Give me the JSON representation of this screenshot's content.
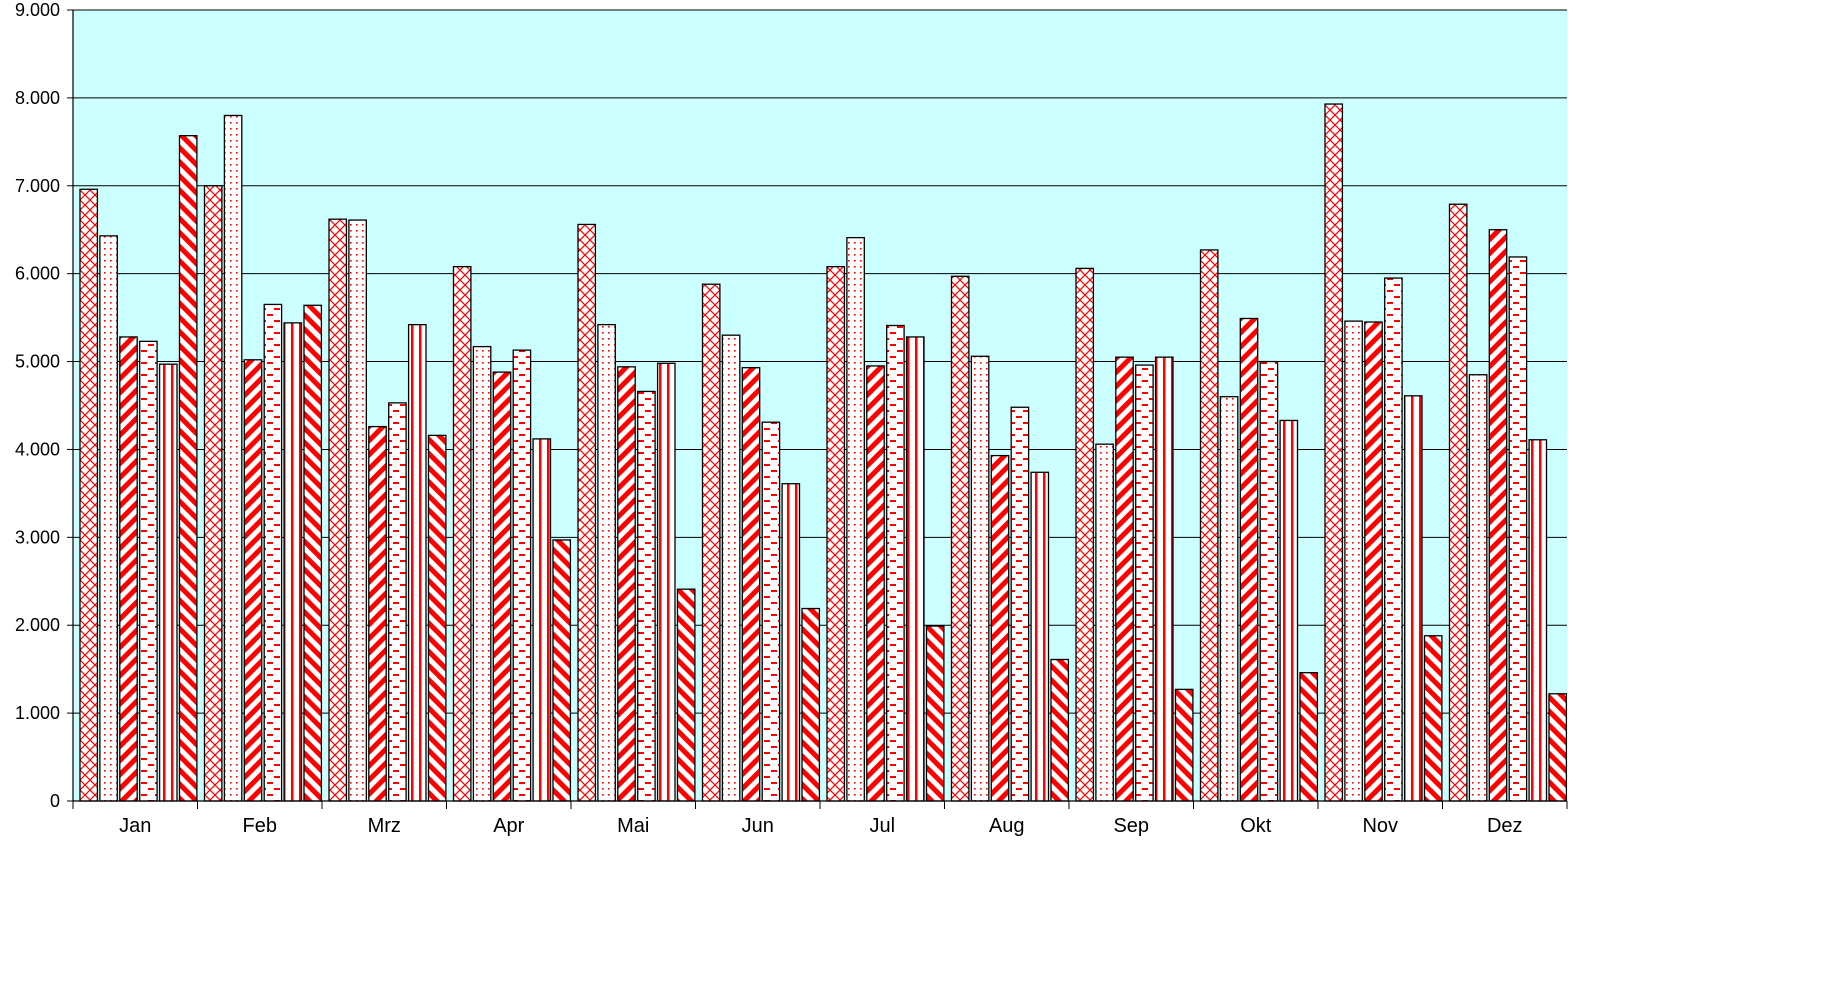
{
  "chart_data": {
    "type": "bar",
    "title": "",
    "xlabel": "",
    "ylabel": "",
    "ylim": [
      0,
      9000
    ],
    "yticks": [
      0,
      1000,
      2000,
      3000,
      4000,
      5000,
      6000,
      7000,
      8000,
      9000
    ],
    "ytick_labels": [
      "0",
      "1.000",
      "2.000",
      "3.000",
      "4.000",
      "5.000",
      "6.000",
      "7.000",
      "8.000",
      "9.000"
    ],
    "grid": true,
    "legend": "none",
    "categories": [
      "Jan",
      "Feb",
      "Mrz",
      "Apr",
      "Mai",
      "Jun",
      "Jul",
      "Aug",
      "Sep",
      "Okt",
      "Nov",
      "Dez"
    ],
    "series": [
      {
        "pattern": "crosshatch",
        "values": [
          6960,
          7000,
          6620,
          6080,
          6560,
          5880,
          6080,
          5970,
          6060,
          6270,
          7930,
          6790
        ]
      },
      {
        "pattern": "dots",
        "values": [
          6430,
          7800,
          6610,
          5170,
          5420,
          5300,
          6410,
          5060,
          4060,
          4600,
          5460,
          4850
        ]
      },
      {
        "pattern": "diagonal-up",
        "values": [
          5280,
          5020,
          4260,
          4880,
          4940,
          4930,
          4950,
          3930,
          5050,
          5490,
          5450,
          6500
        ]
      },
      {
        "pattern": "dashes",
        "values": [
          5230,
          5650,
          4530,
          5130,
          4660,
          4310,
          5410,
          4480,
          4960,
          5000,
          5950,
          6190
        ]
      },
      {
        "pattern": "vertical",
        "values": [
          4970,
          5440,
          5420,
          4120,
          4980,
          3610,
          5280,
          3740,
          5050,
          4330,
          4610,
          4110
        ]
      },
      {
        "pattern": "diagonal-down",
        "values": [
          7570,
          5640,
          4160,
          2970,
          2410,
          2190,
          1990,
          1610,
          1270,
          1460,
          1880,
          1220
        ]
      }
    ],
    "colors": {
      "plot_background": "#ccffff",
      "pattern_color": "#ff0000",
      "bar_fill": "#ffffff",
      "bar_outline": "#000000",
      "gridline": "#000000"
    }
  }
}
